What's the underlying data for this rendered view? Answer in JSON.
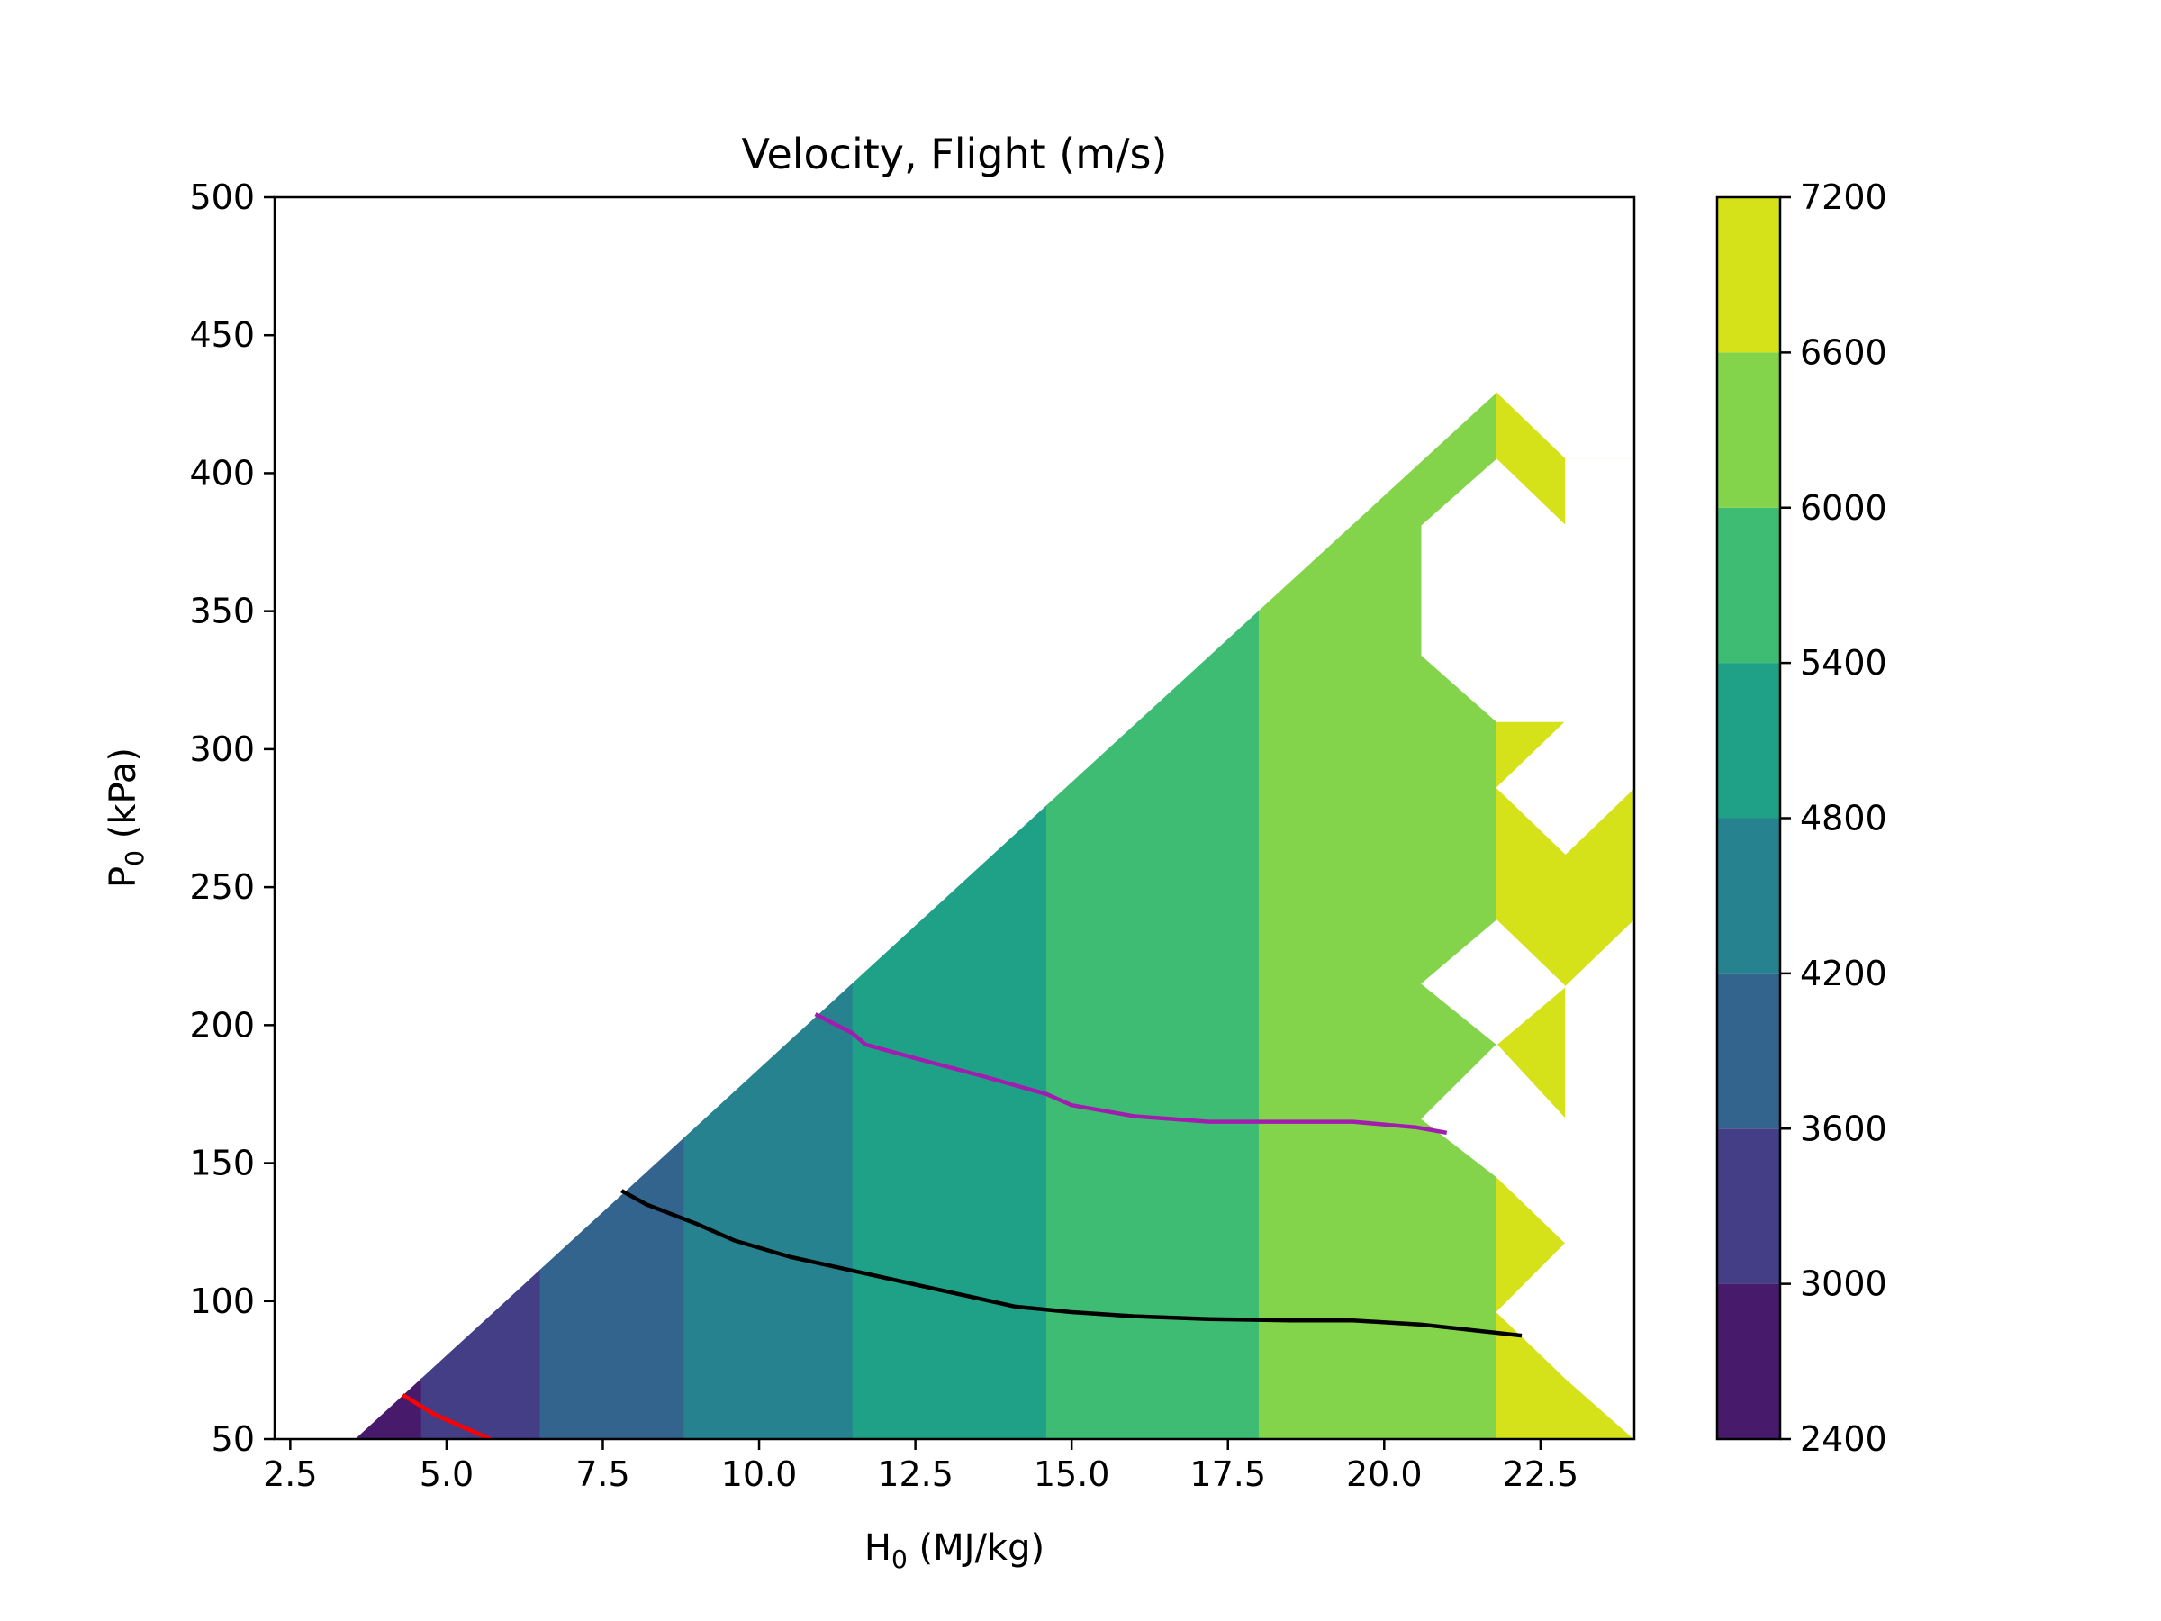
{
  "chart_data": {
    "type": "contourf",
    "title": "Velocity, Flight (m/s)",
    "xlabel": {
      "main": "H",
      "sub": "0",
      "rest": " (MJ/kg)"
    },
    "ylabel": {
      "main": "P",
      "sub": "0",
      "rest": " (kPa)"
    },
    "xlim": [
      2.25,
      24.0
    ],
    "ylim": [
      50,
      500
    ],
    "xticks": [
      2.5,
      5.0,
      7.5,
      10.0,
      12.5,
      15.0,
      17.5,
      20.0,
      22.5
    ],
    "xtick_labels": [
      "2.5",
      "5.0",
      "7.5",
      "10.0",
      "12.5",
      "15.0",
      "17.5",
      "20.0",
      "22.5"
    ],
    "yticks": [
      50,
      100,
      150,
      200,
      250,
      300,
      350,
      400,
      450,
      500
    ],
    "ytick_labels": [
      "50",
      "100",
      "150",
      "200",
      "250",
      "300",
      "350",
      "400",
      "450",
      "500"
    ],
    "colorbar": {
      "levels": [
        2400,
        3000,
        3600,
        4200,
        4800,
        5400,
        6000,
        6600,
        7200
      ],
      "tick_labels": [
        "2400",
        "3000",
        "3600",
        "4200",
        "4800",
        "5400",
        "6000",
        "6600",
        "7200"
      ],
      "colors": [
        "#481a6c",
        "#433e85",
        "#32648e",
        "#26828e",
        "#1fa187",
        "#3fbc73",
        "#84d44b",
        "#d5e21a"
      ]
    },
    "domain_edge": [
      [
        3.55,
        50
      ],
      [
        21.8,
        429
      ]
    ],
    "bands": [
      {
        "level_index": 0,
        "x_from": 3.55,
        "x_to": 4.6,
        "value_range": [
          2400,
          3000
        ]
      },
      {
        "level_index": 1,
        "x_from": 4.6,
        "x_to": 6.5,
        "value_range": [
          3000,
          3600
        ]
      },
      {
        "level_index": 2,
        "x_from": 6.5,
        "x_to": 8.8,
        "value_range": [
          3600,
          4200
        ]
      },
      {
        "level_index": 3,
        "x_from": 8.8,
        "x_to": 11.5,
        "value_range": [
          4200,
          4800
        ]
      },
      {
        "level_index": 4,
        "x_from": 11.5,
        "x_to": 14.6,
        "value_range": [
          4800,
          5400
        ]
      },
      {
        "level_index": 5,
        "x_from": 14.6,
        "x_to": 18.0,
        "value_range": [
          5400,
          6000
        ]
      },
      {
        "level_index": 6,
        "x_from": 18.0,
        "x_to": 21.8,
        "value_range": [
          6000,
          6600
        ]
      }
    ],
    "gaps": [
      {
        "points": [
          [
            21.8,
            395
          ],
          [
            20.6,
            383
          ],
          [
            20.6,
            335
          ],
          [
            21.8,
            310
          ],
          [
            22.9,
            310
          ],
          [
            21.8,
            286
          ],
          [
            22.9,
            262
          ],
          [
            24.0,
            286
          ],
          [
            24.0,
            238
          ],
          [
            22.9,
            214
          ],
          [
            22.9,
            166
          ],
          [
            24.0,
            145
          ],
          [
            24.0,
            48
          ],
          [
            22.9,
            96
          ],
          [
            21.8,
            96
          ],
          [
            22.9,
            121
          ],
          [
            21.8,
            145
          ],
          [
            20.6,
            166
          ],
          [
            21.8,
            193
          ],
          [
            20.6,
            214
          ],
          [
            21.8,
            238
          ],
          [
            22.9,
            214
          ],
          [
            22.9,
            262
          ],
          [
            21.8,
            286
          ],
          [
            22.9,
            310
          ],
          [
            24.0,
            310
          ],
          [
            24.0,
            405
          ],
          [
            22.9,
            405
          ],
          [
            22.9,
            381
          ],
          [
            21.8,
            405
          ]
        ]
      }
    ],
    "yellow_region": [
      [
        21.8,
        50
      ],
      [
        21.8,
        429
      ],
      [
        22.9,
        405
      ],
      [
        24.0,
        405
      ],
      [
        24.0,
        50
      ]
    ],
    "white_cells": [
      [
        [
          21.8,
          405
        ],
        [
          20.6,
          381
        ],
        [
          20.6,
          334
        ],
        [
          21.8,
          310
        ],
        [
          22.9,
          310
        ],
        [
          21.8,
          286
        ],
        [
          22.9,
          262
        ],
        [
          24.0,
          286
        ],
        [
          24.0,
          405
        ],
        [
          22.9,
          405
        ],
        [
          22.9,
          381
        ]
      ],
      [
        [
          24.0,
          238
        ],
        [
          22.9,
          214
        ],
        [
          22.9,
          166
        ],
        [
          24.0,
          145
        ]
      ],
      [
        [
          21.8,
          238
        ],
        [
          20.6,
          215
        ],
        [
          21.8,
          193
        ],
        [
          22.9,
          214
        ]
      ],
      [
        [
          21.8,
          193
        ],
        [
          22.9,
          166
        ],
        [
          22.9,
          121
        ],
        [
          21.8,
          145
        ],
        [
          20.6,
          166
        ]
      ],
      [
        [
          24.0,
          50
        ],
        [
          22.9,
          72
        ],
        [
          21.8,
          96
        ],
        [
          22.9,
          121
        ],
        [
          22.9,
          166
        ],
        [
          24.0,
          145
        ]
      ]
    ],
    "series": [
      {
        "color": "#ff0000",
        "points": [
          [
            4.3,
            66
          ],
          [
            4.8,
            59
          ],
          [
            5.2,
            55
          ],
          [
            5.7,
            50
          ]
        ]
      },
      {
        "color": "#000000",
        "points": [
          [
            7.8,
            140
          ],
          [
            8.2,
            135
          ],
          [
            9.0,
            128
          ],
          [
            9.6,
            122
          ],
          [
            10.5,
            116
          ],
          [
            11.5,
            111
          ],
          [
            12.5,
            106
          ],
          [
            13.5,
            101
          ],
          [
            14.1,
            98
          ],
          [
            15.0,
            96
          ],
          [
            16.0,
            94.5
          ],
          [
            17.2,
            93.5
          ],
          [
            18.5,
            93
          ],
          [
            19.5,
            93
          ],
          [
            20.6,
            91.5
          ],
          [
            21.6,
            89
          ],
          [
            22.2,
            87.5
          ]
        ]
      },
      {
        "color": "#a21caf",
        "points": [
          [
            10.9,
            204
          ],
          [
            11.5,
            197
          ],
          [
            11.7,
            193
          ],
          [
            12.5,
            188
          ],
          [
            13.5,
            182
          ],
          [
            14.6,
            175
          ],
          [
            15.0,
            171
          ],
          [
            15.5,
            169
          ],
          [
            16.0,
            167
          ],
          [
            17.2,
            165
          ],
          [
            18.5,
            165
          ],
          [
            19.5,
            165
          ],
          [
            20.5,
            163
          ],
          [
            21.0,
            161
          ]
        ]
      }
    ]
  }
}
